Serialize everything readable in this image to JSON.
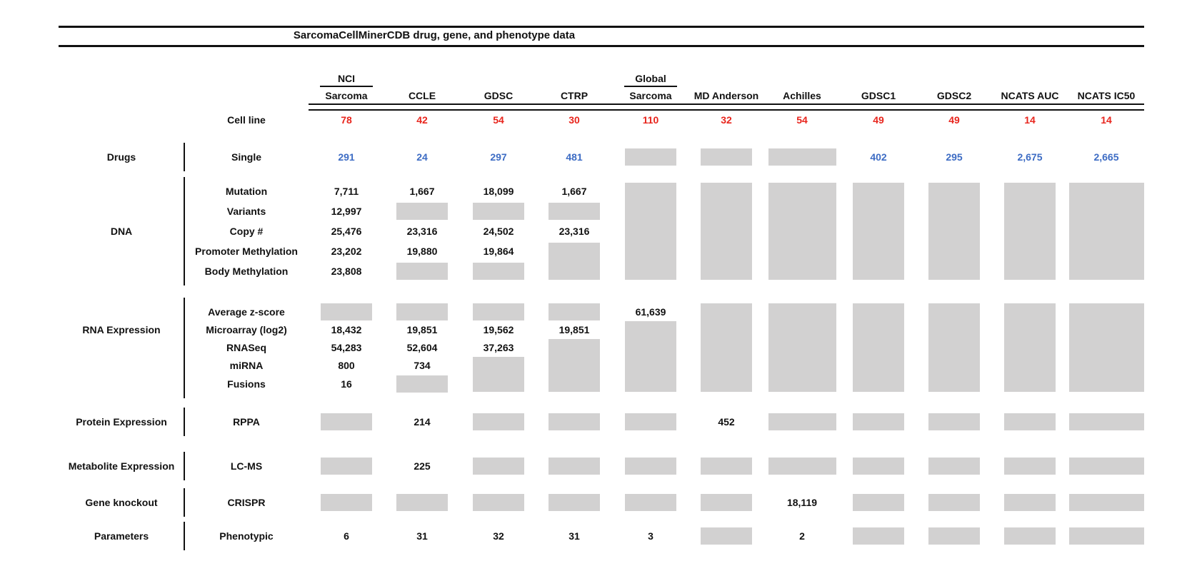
{
  "title": "SarcomaCellMinerCDB drug, gene, and phenotype data",
  "colors": {
    "count_red": "#e8251d",
    "drug_blue": "#3d6cc4",
    "missing_gray": "#d2d1d1",
    "text_black": "#111111"
  },
  "cell_line_row": {
    "label": "Cell line"
  },
  "columns": [
    {
      "id": "nci-sarcoma",
      "top": "NCI",
      "label": "Sarcoma",
      "cell_lines": "78"
    },
    {
      "id": "ccle",
      "label": "CCLE",
      "cell_lines": "42"
    },
    {
      "id": "gdsc",
      "label": "GDSC",
      "cell_lines": "54"
    },
    {
      "id": "ctrp",
      "label": "CTRP",
      "cell_lines": "30"
    },
    {
      "id": "global-sarcoma",
      "top": "Global",
      "label": "Sarcoma",
      "cell_lines": "110"
    },
    {
      "id": "md-anderson",
      "label": "MD Anderson",
      "cell_lines": "32"
    },
    {
      "id": "achilles",
      "label": "Achilles",
      "cell_lines": "54"
    },
    {
      "id": "gdsc1",
      "label": "GDSC1",
      "cell_lines": "49"
    },
    {
      "id": "gdsc2",
      "label": "GDSC2",
      "cell_lines": "49"
    },
    {
      "id": "ncats-auc",
      "label": "NCATS AUC",
      "cell_lines": "14"
    },
    {
      "id": "ncats-ic50",
      "label": "NCATS IC50",
      "cell_lines": "14"
    }
  ],
  "sections": [
    {
      "category": "Drugs",
      "rows": [
        {
          "label": "Single",
          "value_color": "blue",
          "cells": [
            {
              "text": "291"
            },
            {
              "text": "24"
            },
            {
              "text": "297"
            },
            {
              "text": "481"
            },
            {
              "gray": 1
            },
            {
              "gray": 1
            },
            {
              "gray": 1
            },
            {
              "text": "402"
            },
            {
              "text": "295"
            },
            {
              "text": "2,675"
            },
            {
              "text": "2,665"
            }
          ]
        }
      ]
    },
    {
      "category": "DNA",
      "rows": [
        {
          "label": "Mutation",
          "cells": [
            {
              "text": "7,711"
            },
            {
              "text": "1,667"
            },
            {
              "text": "18,099"
            },
            {
              "text": "1,667"
            },
            {
              "gray": 5
            },
            {
              "gray": 5
            },
            {
              "gray": 5
            },
            {
              "gray": 5
            },
            {
              "gray": 5
            },
            {
              "gray": 5
            },
            {
              "gray": 5
            }
          ]
        },
        {
          "label": "Variants",
          "cells": [
            {
              "text": "12,997"
            },
            {
              "gray": 1
            },
            {
              "gray": 1
            },
            {
              "gray": 1
            },
            null,
            null,
            null,
            null,
            null,
            null,
            null
          ]
        },
        {
          "label": "Copy #",
          "cells": [
            {
              "text": "25,476"
            },
            {
              "text": "23,316"
            },
            {
              "text": "24,502"
            },
            {
              "text": "23,316"
            },
            null,
            null,
            null,
            null,
            null,
            null,
            null
          ]
        },
        {
          "label": "Promoter Methylation",
          "cells": [
            {
              "text": "23,202"
            },
            {
              "text": "19,880"
            },
            {
              "text": "19,864"
            },
            {
              "gray": 2
            },
            null,
            null,
            null,
            null,
            null,
            null,
            null
          ]
        },
        {
          "label": "Body Methylation",
          "cells": [
            {
              "text": "23,808"
            },
            {
              "gray": 1
            },
            {
              "gray": 1
            },
            null,
            null,
            null,
            null,
            null,
            null,
            null,
            null
          ]
        }
      ]
    },
    {
      "category": "RNA Expression",
      "rows": [
        {
          "label": "Average z-score",
          "cells": [
            {
              "gray": 1
            },
            {
              "gray": 1
            },
            {
              "gray": 1
            },
            {
              "gray": 1
            },
            {
              "text": "61,639"
            },
            {
              "gray": 5
            },
            {
              "gray": 5
            },
            {
              "gray": 5
            },
            {
              "gray": 5
            },
            {
              "gray": 5
            },
            {
              "gray": 5
            }
          ]
        },
        {
          "label": "Microarray (log2)",
          "cells": [
            {
              "text": "18,432"
            },
            {
              "text": "19,851"
            },
            {
              "text": "19,562"
            },
            {
              "text": "19,851"
            },
            {
              "gray": 4
            },
            null,
            null,
            null,
            null,
            null,
            null
          ]
        },
        {
          "label": "RNASeq",
          "cells": [
            {
              "text": "54,283"
            },
            {
              "text": "52,604"
            },
            {
              "text": "37,263"
            },
            {
              "gray": 3
            },
            null,
            null,
            null,
            null,
            null,
            null,
            null
          ]
        },
        {
          "label": "miRNA",
          "cells": [
            {
              "text": "800"
            },
            {
              "text": "734"
            },
            {
              "gray": 2
            },
            null,
            null,
            null,
            null,
            null,
            null,
            null,
            null
          ]
        },
        {
          "label": "Fusions",
          "cells": [
            {
              "text": "16"
            },
            {
              "gray": 1
            },
            null,
            null,
            null,
            null,
            null,
            null,
            null,
            null,
            null
          ]
        }
      ]
    },
    {
      "category": "Protein Expression",
      "rows": [
        {
          "label": "RPPA",
          "cells": [
            {
              "gray": 1
            },
            {
              "text": "214"
            },
            {
              "gray": 1
            },
            {
              "gray": 1
            },
            {
              "gray": 1
            },
            {
              "text": "452"
            },
            {
              "gray": 1
            },
            {
              "gray": 1
            },
            {
              "gray": 1
            },
            {
              "gray": 1
            },
            {
              "gray": 1
            }
          ]
        }
      ]
    },
    {
      "category": "Metabolite Expression",
      "rows": [
        {
          "label": "LC-MS",
          "cells": [
            {
              "gray": 1
            },
            {
              "text": "225"
            },
            {
              "gray": 1
            },
            {
              "gray": 1
            },
            {
              "gray": 1
            },
            {
              "gray": 1
            },
            {
              "gray": 1
            },
            {
              "gray": 1
            },
            {
              "gray": 1
            },
            {
              "gray": 1
            },
            {
              "gray": 1
            }
          ]
        }
      ]
    },
    {
      "category": "Gene knockout",
      "rows": [
        {
          "label": "CRISPR",
          "cells": [
            {
              "gray": 1
            },
            {
              "gray": 1
            },
            {
              "gray": 1
            },
            {
              "gray": 1
            },
            {
              "gray": 1
            },
            {
              "gray": 1
            },
            {
              "text": "18,119"
            },
            {
              "gray": 1
            },
            {
              "gray": 1
            },
            {
              "gray": 1
            },
            {
              "gray": 1
            }
          ]
        }
      ]
    },
    {
      "category": "Parameters",
      "rows": [
        {
          "label": "Phenotypic",
          "cells": [
            {
              "text": "6"
            },
            {
              "text": "31"
            },
            {
              "text": "32"
            },
            {
              "text": "31"
            },
            {
              "text": "3"
            },
            {
              "gray": 1
            },
            {
              "text": "2"
            },
            {
              "gray": 1
            },
            {
              "gray": 1
            },
            {
              "gray": 1
            },
            {
              "gray": 1
            }
          ]
        }
      ]
    }
  ]
}
